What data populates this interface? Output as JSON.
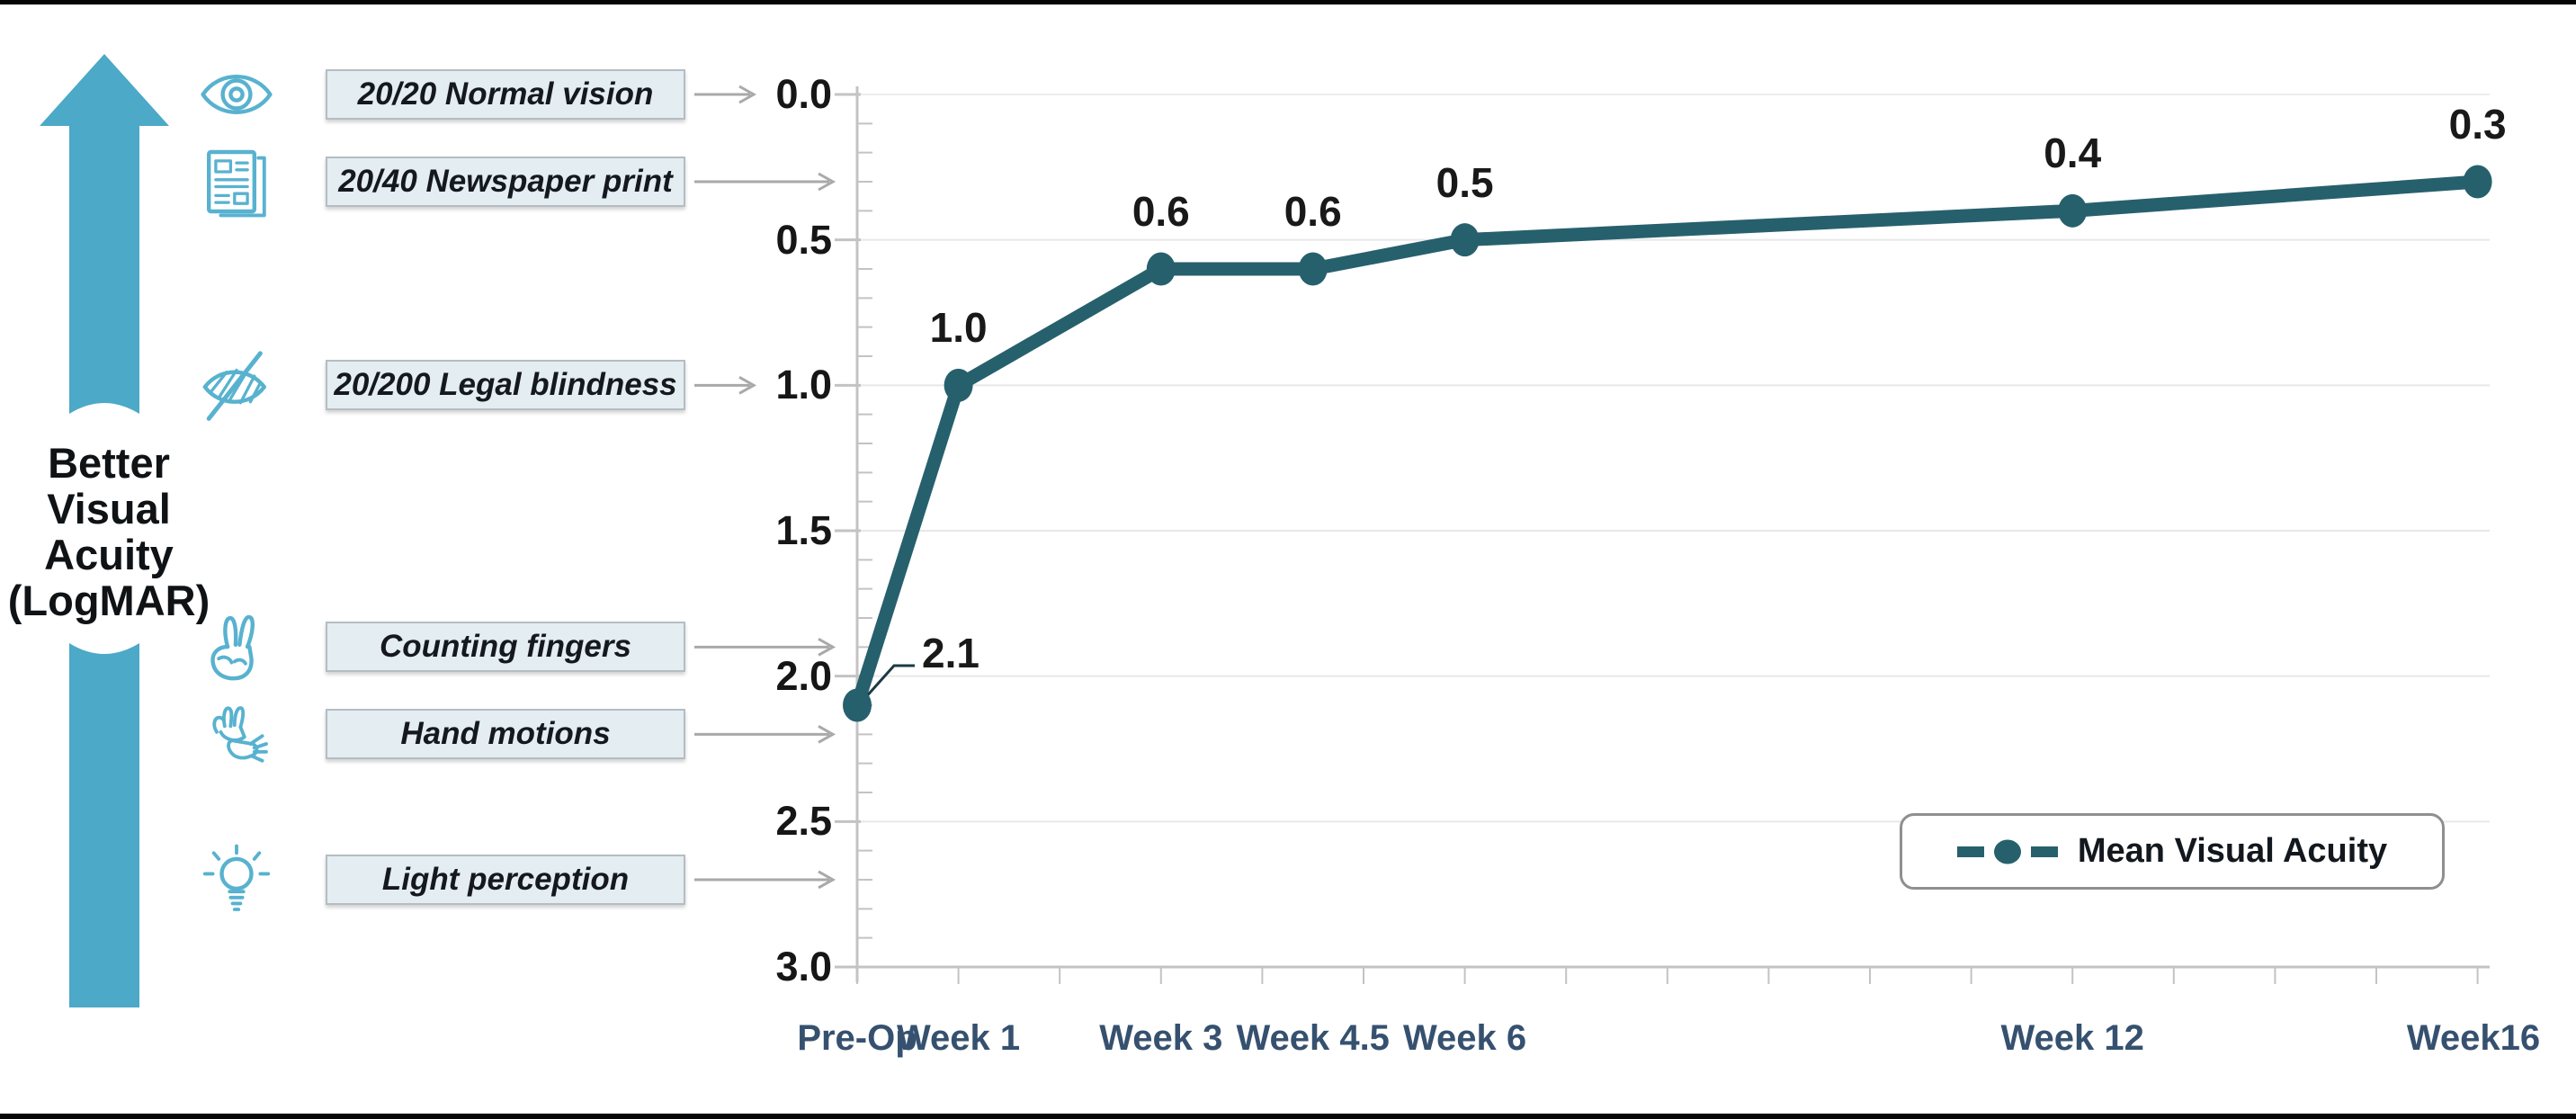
{
  "axis_title": {
    "lines": [
      "Better",
      "Visual",
      "Acuity",
      "(LogMAR)"
    ]
  },
  "reference_scale": {
    "items": [
      {
        "label": "20/20 Normal vision",
        "icon": "eye-icon",
        "logmar": 0.0,
        "arrow": "short"
      },
      {
        "label": "20/40 Newspaper print",
        "icon": "newspaper-icon",
        "logmar": 0.3,
        "arrow": "long"
      },
      {
        "label": "20/200 Legal blindness",
        "icon": "eye-blind-icon",
        "logmar": 1.0,
        "arrow": "short"
      },
      {
        "label": "Counting fingers",
        "icon": "counting-fingers-icon",
        "logmar": 1.9,
        "arrow": "long"
      },
      {
        "label": "Hand motions",
        "icon": "hand-motions-icon",
        "logmar": 2.2,
        "arrow": "long"
      },
      {
        "label": "Light perception",
        "icon": "light-perception-icon",
        "logmar": 2.7,
        "arrow": "long"
      }
    ]
  },
  "chart_data": {
    "type": "line",
    "title": "",
    "series": [
      {
        "name": "Mean Visual Acuity",
        "color": "#27606d",
        "points": [
          {
            "x_label": "Pre-Op",
            "week": 0,
            "value": 2.1,
            "value_label": "2.1"
          },
          {
            "x_label": "Week 1",
            "week": 1,
            "value": 1.0,
            "value_label": "1.0"
          },
          {
            "x_label": "Week 3",
            "week": 3,
            "value": 0.6,
            "value_label": "0.6"
          },
          {
            "x_label": "Week 4.5",
            "week": 4.5,
            "value": 0.6,
            "value_label": "0.6"
          },
          {
            "x_label": "Week 6",
            "week": 6,
            "value": 0.5,
            "value_label": "0.5"
          },
          {
            "x_label": "Week 12",
            "week": 12,
            "value": 0.4,
            "value_label": "0.4"
          },
          {
            "x_label": "Week16",
            "week": 16,
            "value": 0.3,
            "value_label": "0.3"
          }
        ]
      }
    ],
    "y_axis": {
      "tick_labels": [
        "0.0",
        "0.5",
        "1.0",
        "1.5",
        "2.0",
        "2.5",
        "3.0"
      ],
      "min": 0,
      "max": 3,
      "major_step": 0.5,
      "minor_step": 0.1,
      "inverted": true
    },
    "x_axis": {
      "unit": "weeks",
      "min": 0,
      "max": 16,
      "tick_step": 1
    },
    "grid": true,
    "legend": {
      "label": "Mean Visual Acuity",
      "position": "bottom-right"
    }
  },
  "colors": {
    "arrow_teal": "#4ca9c7",
    "icon_teal": "#58b2cf",
    "line_dark_teal": "#27606d",
    "x_label": "#36516f",
    "box_fill": "#e3edf2",
    "box_border": "#b5bdc2",
    "gridline": "#e8e8e8",
    "axis": "#c3c3c3",
    "reference_arrow": "#a9a9a9",
    "text": "#161616"
  }
}
